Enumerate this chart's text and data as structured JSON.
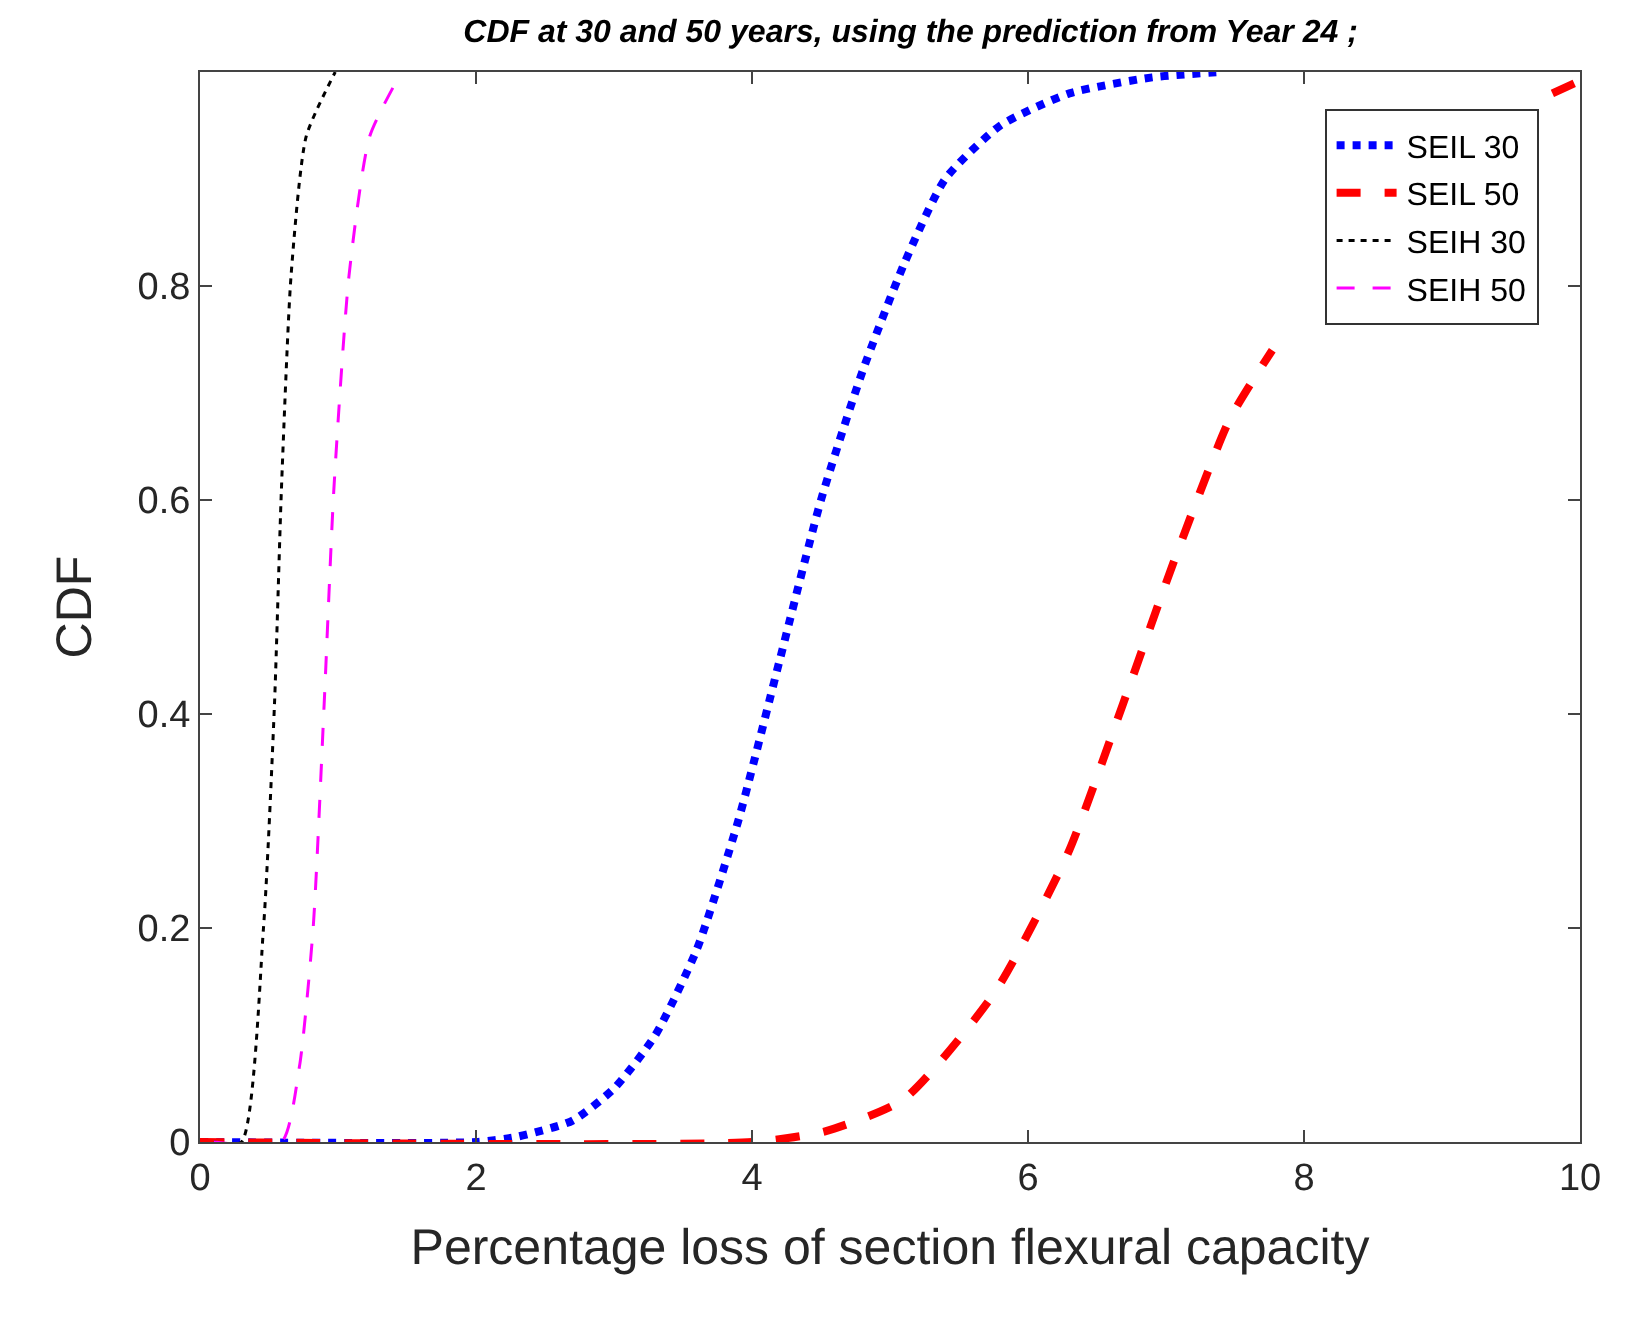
{
  "chart_data": {
    "type": "line",
    "title": "CDF at 30 and 50 years, using the prediction from Year 24 ;",
    "xlabel": "Percentage loss of section flexural capacity",
    "ylabel": "CDF",
    "xlim": [
      0,
      10
    ],
    "ylim": [
      0,
      1
    ],
    "xticks": [
      0,
      2,
      4,
      6,
      8,
      10
    ],
    "yticks": [
      0,
      0.2,
      0.4,
      0.6,
      0.8
    ],
    "legend": "top right",
    "marker": "none",
    "series": [
      {
        "name": "SEIL 30",
        "color": "#0000ff",
        "line_style": "dotted",
        "x": [
          0,
          2.0,
          2.3,
          2.7,
          3.0,
          3.3,
          3.6,
          3.9,
          4.2,
          4.5,
          4.8,
          5.1,
          5.4,
          5.8,
          6.3,
          6.9,
          7.4
        ],
        "values": [
          0,
          0,
          0.005,
          0.02,
          0.05,
          0.1,
          0.18,
          0.3,
          0.45,
          0.6,
          0.72,
          0.82,
          0.9,
          0.95,
          0.98,
          0.995,
          1.0
        ]
      },
      {
        "name": "SEIL 50",
        "color": "#ff0000",
        "line_style": "dashed",
        "x": [
          0,
          4.0,
          4.53,
          5.1,
          5.76,
          6.29,
          6.69,
          7.05,
          7.46,
          7.77,
          8.3,
          9.0,
          9.8,
          9.97
        ],
        "values": [
          0,
          0,
          0.01,
          0.04,
          0.14,
          0.27,
          0.41,
          0.54,
          0.675,
          0.74,
          null,
          null,
          0.98,
          0.99
        ]
      },
      {
        "name": "SEIH 30",
        "color": "#000000",
        "line_style": "dotted",
        "x": [
          0.1,
          0.3,
          0.46,
          0.54,
          0.59,
          0.66,
          0.77,
          0.98
        ],
        "values": [
          0,
          0,
          0.2,
          0.41,
          0.61,
          0.81,
          0.94,
          1.0
        ]
      },
      {
        "name": "SEIH 50",
        "color": "#ff00ff",
        "line_style": "dashed",
        "x": [
          0.1,
          0.59,
          0.72,
          0.82,
          0.9,
          0.97,
          1.08,
          1.23,
          1.46
        ],
        "values": [
          0,
          0,
          0.07,
          0.2,
          0.41,
          0.61,
          0.81,
          0.94,
          1.0
        ]
      }
    ]
  }
}
